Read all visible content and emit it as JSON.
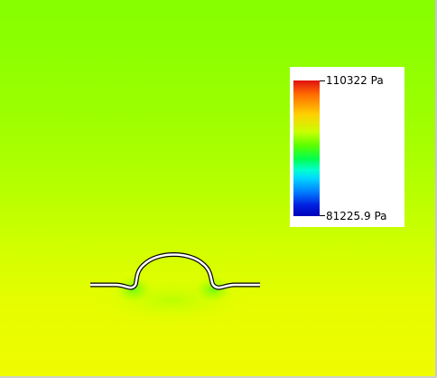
{
  "legend": {
    "max_label": "110322 Pa",
    "min_label": "81225.9 Pa"
  },
  "colors": {
    "contour_top": "#86ff00",
    "contour_bottom": "#f0fb00",
    "legend_max": "#e01010",
    "legend_min": "#0000b8"
  }
}
